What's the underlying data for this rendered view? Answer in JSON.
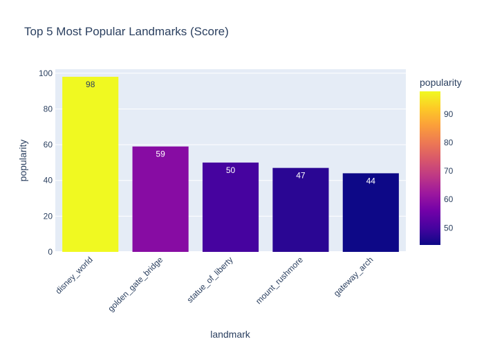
{
  "chart_data": {
    "type": "bar",
    "title": "Top 5 Most Popular Landmarks (Score)",
    "xlabel": "landmark",
    "ylabel": "popularity",
    "categories": [
      "disney_world",
      "golden_gate_bridge",
      "statue_of_liberty",
      "mount_rushmore",
      "gateway_arch"
    ],
    "values": [
      98,
      59,
      50,
      47,
      44
    ],
    "data_labels": [
      "98",
      "59",
      "50",
      "47",
      "44"
    ],
    "ylim": [
      0,
      100
    ],
    "yticks": [
      0,
      20,
      40,
      60,
      80,
      100
    ],
    "grid": true,
    "colorbar": {
      "title": "popularity",
      "range": [
        44,
        98
      ],
      "ticks": [
        50,
        60,
        70,
        80,
        90
      ],
      "colorscale": [
        "#0d0887",
        "#46039f",
        "#7201a8",
        "#9c179e",
        "#bd3786",
        "#d8576b",
        "#ed7953",
        "#fb9f3a",
        "#fdca26",
        "#f0f921"
      ]
    },
    "plot_background": "#e5ecf6"
  }
}
